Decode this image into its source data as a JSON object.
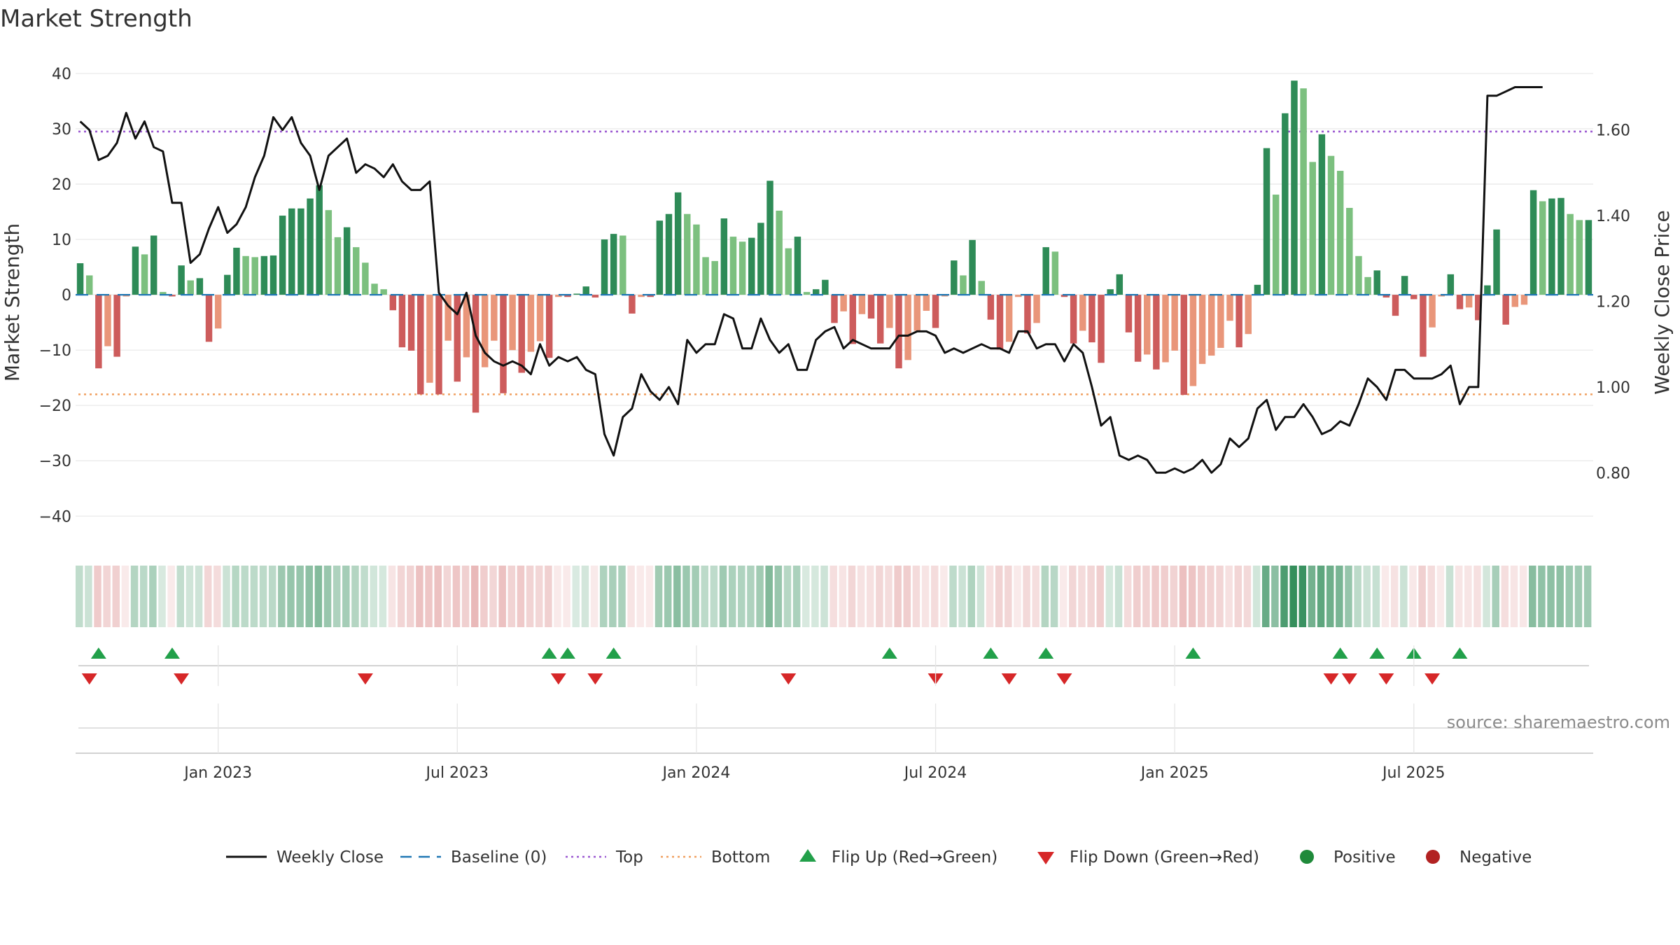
{
  "chart_data": {
    "type": "bar",
    "title": "Market Strength",
    "ylabel": "Market Strength",
    "y2label": "Weekly Close Price",
    "ylim": [
      -43,
      41
    ],
    "y2lim": [
      0.66,
      1.745
    ],
    "yticks": [
      -40,
      -30,
      -20,
      -10,
      0,
      10,
      20,
      30,
      40
    ],
    "yticklabels": [
      "−40",
      "−30",
      "−20",
      "−10",
      "0",
      "10",
      "20",
      "30",
      "40"
    ],
    "y2ticks": [
      0.8,
      1.0,
      1.2,
      1.4,
      1.6
    ],
    "y2ticklabels": [
      "0.80",
      "1.00",
      "1.20",
      "1.40",
      "1.60"
    ],
    "top_line": 29.5,
    "bottom_line": -18,
    "xtick_labels": [
      "Jan 2023",
      "Jul 2023",
      "Jan 2024",
      "Jul 2024",
      "Jan 2025",
      "Jul 2025"
    ],
    "xtick_weeks": [
      15,
      41,
      67,
      93,
      119,
      145
    ],
    "strength": [
      5.7,
      3.5,
      -13.3,
      -9.3,
      -11.2,
      -0.3,
      8.7,
      7.3,
      10.7,
      0.5,
      -0.3,
      5.3,
      2.6,
      3.0,
      -8.5,
      -6.1,
      3.6,
      8.5,
      7.0,
      6.8,
      7.0,
      7.1,
      14.3,
      15.6,
      15.6,
      17.4,
      19.8,
      15.3,
      10.4,
      12.2,
      8.6,
      5.8,
      2.0,
      1.0,
      -2.8,
      -9.5,
      -10.1,
      -18.0,
      -15.9,
      -18.0,
      -8.3,
      -15.7,
      -11.3,
      -21.3,
      -13.1,
      -8.3,
      -17.8,
      -10.0,
      -14.1,
      -10.3,
      -8.4,
      -11.4,
      -0.4,
      -0.4,
      0.2,
      1.5,
      -0.5,
      10.0,
      11.0,
      10.7,
      -3.4,
      -0.4,
      -0.4,
      13.4,
      14.6,
      18.5,
      14.6,
      12.7,
      6.8,
      6.1,
      13.8,
      10.5,
      9.6,
      10.3,
      13.0,
      20.6,
      15.2,
      8.4,
      10.5,
      0.5,
      1.0,
      2.7,
      -5.1,
      -3.0,
      -8.9,
      -3.5,
      -4.3,
      -8.8,
      -6.0,
      -13.3,
      -11.8,
      -6.5,
      -2.9,
      -6.0,
      -0.3,
      6.2,
      3.5,
      9.9,
      2.5,
      -4.5,
      -9.9,
      -8.5,
      -0.4,
      -7.0,
      -5.1,
      8.6,
      7.8,
      -0.4,
      -8.8,
      -6.5,
      -8.6,
      -12.3,
      1.0,
      3.7,
      -6.8,
      -12.1,
      -10.8,
      -13.5,
      -12.2,
      -10.1,
      -18.1,
      -16.5,
      -12.5,
      -11.0,
      -9.6,
      -4.7,
      -9.5,
      -7.1,
      1.8,
      26.5,
      18.1,
      32.8,
      38.7,
      37.3,
      24.0,
      29.0,
      25.1,
      22.4,
      15.7,
      7.0,
      3.2,
      4.4,
      -0.5,
      -3.8,
      3.4,
      -0.8,
      -11.2,
      -5.9,
      -0.3,
      3.7,
      -2.6,
      -2.3,
      -4.6,
      1.7,
      11.8,
      -5.4,
      -2.2,
      -1.8,
      18.9,
      16.9,
      17.4,
      17.5,
      14.6,
      13.5,
      13.5
    ],
    "weekly_close": [
      1.62,
      1.6,
      1.53,
      1.54,
      1.57,
      1.64,
      1.58,
      1.62,
      1.56,
      1.55,
      1.43,
      1.43,
      1.29,
      1.31,
      1.37,
      1.42,
      1.36,
      1.38,
      1.42,
      1.49,
      1.54,
      1.63,
      1.6,
      1.63,
      1.57,
      1.54,
      1.46,
      1.54,
      1.56,
      1.58,
      1.5,
      1.52,
      1.51,
      1.49,
      1.52,
      1.48,
      1.46,
      1.46,
      1.48,
      1.22,
      1.19,
      1.17,
      1.22,
      1.12,
      1.08,
      1.06,
      1.05,
      1.06,
      1.05,
      1.03,
      1.1,
      1.05,
      1.07,
      1.06,
      1.07,
      1.04,
      1.03,
      0.89,
      0.84,
      0.93,
      0.95,
      1.03,
      0.99,
      0.97,
      1.0,
      0.96,
      1.11,
      1.08,
      1.1,
      1.1,
      1.17,
      1.16,
      1.09,
      1.09,
      1.16,
      1.11,
      1.08,
      1.1,
      1.04,
      1.04,
      1.11,
      1.13,
      1.14,
      1.09,
      1.11,
      1.1,
      1.09,
      1.09,
      1.09,
      1.12,
      1.12,
      1.13,
      1.13,
      1.12,
      1.08,
      1.09,
      1.08,
      1.09,
      1.1,
      1.09,
      1.09,
      1.08,
      1.13,
      1.13,
      1.09,
      1.1,
      1.1,
      1.06,
      1.1,
      1.08,
      1.0,
      0.91,
      0.93,
      0.84,
      0.83,
      0.84,
      0.83,
      0.8,
      0.8,
      0.81,
      0.8,
      0.81,
      0.83,
      0.8,
      0.82,
      0.88,
      0.86,
      0.88,
      0.95,
      0.97,
      0.9,
      0.93,
      0.93,
      0.96,
      0.93,
      0.89,
      0.9,
      0.92,
      0.91,
      0.96,
      1.02,
      1.0,
      0.97,
      1.04,
      1.04,
      1.02,
      1.02,
      1.02,
      1.03,
      1.05,
      0.96,
      1.0,
      1.0,
      1.68,
      1.68,
      1.69,
      1.7,
      1.7,
      1.7,
      1.7
    ],
    "flip_up_weeks": [
      2,
      10,
      51,
      53,
      58,
      88,
      99,
      105,
      121,
      137,
      141,
      145,
      150
    ],
    "flip_down_weeks": [
      1,
      11,
      31,
      52,
      56,
      77,
      93,
      101,
      107,
      136,
      138,
      142,
      147
    ]
  },
  "legend": [
    {
      "label": "Weekly Close",
      "marker": "solid-line",
      "color": "#111111"
    },
    {
      "label": "Baseline (0)",
      "marker": "dashed-line",
      "color": "#1f77b4"
    },
    {
      "label": "Top",
      "marker": "dotted-line",
      "color": "#9c59d1"
    },
    {
      "label": "Bottom",
      "marker": "dotted-line",
      "color": "#f0a060"
    },
    {
      "label": "Flip Up (Red→Green)",
      "marker": "triangle-up",
      "color": "#22a04a"
    },
    {
      "label": "Flip Down (Green→Red)",
      "marker": "triangle-down",
      "color": "#d62728"
    },
    {
      "label": "Positive",
      "marker": "circle",
      "color": "#1f8a3a"
    },
    {
      "label": "Negative",
      "marker": "circle",
      "color": "#b22222"
    }
  ],
  "colors": {
    "pos_strong": "#2e8b57",
    "pos_light": "#7cc07f",
    "neg_strong": "#cd5c5c",
    "neg_light": "#e9967a",
    "price_line": "#111111",
    "baseline": "#1f77b4",
    "top": "#9c59d1",
    "bottom": "#f0a060",
    "flip_up": "#22a04a",
    "flip_down": "#d62728"
  },
  "source": "source: sharemaestro.com"
}
